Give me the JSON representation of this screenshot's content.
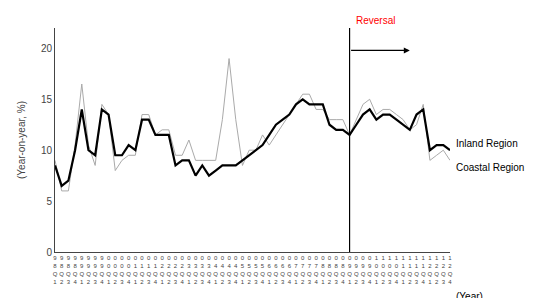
{
  "chart_data": {
    "type": "line",
    "ylabel": "(Year-on-year, %)",
    "xlabel": "(Year)",
    "categories": [
      "98Q1",
      "98Q2",
      "98Q3",
      "98Q4",
      "99Q1",
      "99Q2",
      "99Q3",
      "99Q4",
      "00Q1",
      "00Q2",
      "00Q3",
      "00Q4",
      "01Q1",
      "01Q2",
      "01Q3",
      "01Q4",
      "02Q1",
      "02Q2",
      "02Q3",
      "02Q4",
      "03Q1",
      "03Q2",
      "03Q3",
      "03Q4",
      "04Q1",
      "04Q2",
      "04Q3",
      "04Q4",
      "05Q1",
      "05Q2",
      "05Q3",
      "05Q4",
      "06Q1",
      "06Q2",
      "06Q3",
      "06Q4",
      "07Q1",
      "07Q2",
      "07Q3",
      "07Q4",
      "08Q1",
      "08Q2",
      "08Q3",
      "08Q4",
      "09Q1",
      "09Q2",
      "09Q3",
      "09Q4",
      "10Q1",
      "10Q2",
      "10Q3",
      "10Q4",
      "11Q1",
      "11Q2",
      "11Q3",
      "11Q4",
      "12Q1",
      "12Q2",
      "12Q3",
      "12Q4"
    ],
    "series": [
      {
        "name": "Coastal Region",
        "color": "#aaaaaa",
        "values": [
          9.0,
          6.0,
          6.0,
          10.5,
          16.5,
          10.5,
          8.5,
          14.5,
          13.5,
          8.0,
          9.0,
          9.5,
          9.5,
          13.5,
          13.5,
          11.5,
          12.0,
          12.0,
          9.5,
          9.5,
          11.0,
          9.0,
          9.0,
          9.0,
          9.0,
          13.0,
          19.0,
          13.0,
          8.5,
          10.0,
          10.0,
          11.5,
          10.5,
          11.5,
          12.5,
          13.5,
          14.5,
          15.5,
          15.5,
          14.0,
          14.0,
          13.0,
          13.0,
          13.0,
          11.5,
          13.0,
          14.5,
          15.0,
          13.5,
          14.0,
          14.0,
          13.5,
          13.0,
          12.0,
          12.5,
          14.5,
          9.0,
          9.5,
          10.0,
          9.0
        ]
      },
      {
        "name": "Inland Region",
        "color": "#000000",
        "values": [
          8.5,
          6.5,
          7.0,
          10.0,
          14.0,
          10.0,
          9.5,
          14.0,
          13.5,
          9.5,
          9.5,
          10.5,
          10.0,
          13.0,
          13.0,
          11.5,
          11.5,
          11.5,
          8.5,
          9.0,
          9.0,
          7.5,
          8.5,
          7.5,
          8.0,
          8.5,
          8.5,
          8.5,
          9.0,
          9.5,
          10.0,
          10.5,
          11.5,
          12.5,
          13.0,
          13.5,
          14.5,
          15.0,
          14.5,
          14.5,
          14.5,
          12.5,
          12.0,
          12.0,
          11.5,
          12.5,
          13.5,
          14.0,
          13.0,
          13.5,
          13.5,
          13.0,
          12.5,
          12.0,
          13.5,
          14.0,
          10.0,
          10.5,
          10.5,
          10.0
        ]
      }
    ],
    "annotations": [
      {
        "text": "Reversal",
        "x": "09Q1",
        "color": "red"
      }
    ],
    "ylim": [
      0,
      22
    ],
    "yticks": [
      0,
      5,
      10,
      15,
      20
    ],
    "grid": false
  }
}
